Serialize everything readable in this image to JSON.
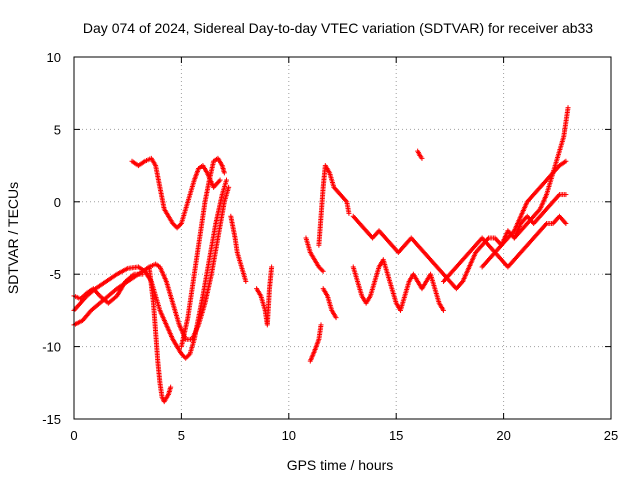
{
  "chart_data": {
    "type": "scatter",
    "title": "Day 074 of 2024, Sidereal Day-to-day VTEC variation (SDTVAR) for receiver ab33",
    "xlabel": "GPS time / hours",
    "ylabel": "SDTVAR / TECUs",
    "xlim": [
      0,
      25
    ],
    "ylim": [
      -15,
      10
    ],
    "xticks": [
      0,
      5,
      10,
      15,
      20,
      25
    ],
    "yticks": [
      -15,
      -10,
      -5,
      0,
      5,
      10
    ],
    "grid": true,
    "marker": "plus",
    "color": "#ff0000",
    "series": [
      {
        "segments": [
          [
            [
              0.0,
              -7.5
            ],
            [
              0.3,
              -7.0
            ],
            [
              0.6,
              -6.5
            ],
            [
              1.0,
              -6.0
            ],
            [
              1.5,
              -5.5
            ],
            [
              2.0,
              -5.0
            ],
            [
              2.5,
              -4.6
            ],
            [
              3.0,
              -4.5
            ],
            [
              3.3,
              -4.8
            ],
            [
              3.6,
              -5.5
            ],
            [
              3.8,
              -6.5
            ],
            [
              4.0,
              -7.5
            ],
            [
              4.3,
              -8.5
            ],
            [
              4.6,
              -9.5
            ],
            [
              5.0,
              -10.5
            ],
            [
              5.2,
              -10.8
            ],
            [
              5.4,
              -10.5
            ],
            [
              5.6,
              -9.5
            ],
            [
              5.8,
              -8.0
            ],
            [
              6.0,
              -6.5
            ],
            [
              6.3,
              -4.0
            ],
            [
              6.6,
              -1.5
            ],
            [
              6.9,
              0.5
            ],
            [
              7.1,
              1.5
            ]
          ],
          [
            [
              0.0,
              -8.5
            ],
            [
              0.4,
              -8.2
            ],
            [
              0.8,
              -7.5
            ],
            [
              1.2,
              -7.0
            ],
            [
              1.6,
              -6.5
            ],
            [
              2.0,
              -6.0
            ],
            [
              2.5,
              -5.5
            ],
            [
              3.0,
              -5.0
            ],
            [
              3.5,
              -4.5
            ],
            [
              3.8,
              -4.3
            ],
            [
              4.0,
              -4.5
            ],
            [
              4.3,
              -5.5
            ],
            [
              4.6,
              -7.0
            ],
            [
              4.9,
              -8.5
            ],
            [
              5.2,
              -9.5
            ],
            [
              5.5,
              -9.5
            ],
            [
              5.8,
              -8.5
            ],
            [
              6.1,
              -7.0
            ],
            [
              6.4,
              -5.0
            ],
            [
              6.7,
              -2.5
            ],
            [
              7.0,
              0.0
            ],
            [
              7.2,
              1.0
            ]
          ],
          [
            [
              0.0,
              -6.5
            ],
            [
              0.3,
              -6.7
            ],
            [
              0.6,
              -6.3
            ],
            [
              0.9,
              -6.0
            ],
            [
              1.2,
              -6.5
            ],
            [
              1.6,
              -7.0
            ],
            [
              2.0,
              -6.5
            ],
            [
              2.4,
              -5.5
            ],
            [
              2.8,
              -5.0
            ],
            [
              3.2,
              -5.0
            ]
          ],
          [
            [
              2.7,
              2.8
            ],
            [
              3.0,
              2.5
            ],
            [
              3.3,
              2.8
            ],
            [
              3.6,
              3.0
            ],
            [
              3.8,
              2.5
            ],
            [
              4.0,
              1.0
            ],
            [
              4.2,
              -0.5
            ],
            [
              4.4,
              -1.0
            ],
            [
              4.6,
              -1.5
            ],
            [
              4.8,
              -1.8
            ],
            [
              5.0,
              -1.5
            ],
            [
              5.2,
              -0.5
            ],
            [
              5.4,
              0.5
            ],
            [
              5.6,
              1.5
            ],
            [
              5.8,
              2.3
            ],
            [
              6.0,
              2.5
            ],
            [
              6.2,
              2.0
            ],
            [
              6.5,
              1.0
            ],
            [
              6.8,
              1.5
            ]
          ],
          [
            [
              3.5,
              -4.5
            ],
            [
              3.7,
              -7.0
            ],
            [
              3.8,
              -9.0
            ],
            [
              3.9,
              -11.0
            ],
            [
              4.0,
              -12.5
            ],
            [
              4.1,
              -13.5
            ],
            [
              4.2,
              -13.8
            ],
            [
              4.4,
              -13.3
            ],
            [
              4.5,
              -12.8
            ]
          ],
          [
            [
              5.0,
              -10.0
            ],
            [
              5.3,
              -8.0
            ],
            [
              5.6,
              -5.0
            ],
            [
              5.9,
              -2.0
            ],
            [
              6.1,
              0.0
            ],
            [
              6.3,
              1.5
            ],
            [
              6.5,
              2.8
            ],
            [
              6.7,
              3.0
            ],
            [
              6.9,
              2.5
            ],
            [
              7.0,
              2.0
            ]
          ],
          [
            [
              7.3,
              -1.0
            ],
            [
              7.5,
              -2.5
            ],
            [
              7.6,
              -3.5
            ],
            [
              7.8,
              -4.5
            ],
            [
              8.0,
              -5.5
            ]
          ],
          [
            [
              8.5,
              -6.0
            ],
            [
              8.7,
              -6.5
            ],
            [
              8.9,
              -7.5
            ],
            [
              9.0,
              -8.5
            ],
            [
              9.1,
              -6.0
            ],
            [
              9.2,
              -4.5
            ]
          ],
          [
            [
              10.8,
              -2.5
            ],
            [
              11.0,
              -3.5
            ],
            [
              11.2,
              -4.0
            ],
            [
              11.4,
              -4.5
            ],
            [
              11.6,
              -4.8
            ]
          ],
          [
            [
              11.0,
              -11.0
            ],
            [
              11.2,
              -10.3
            ],
            [
              11.4,
              -9.5
            ],
            [
              11.5,
              -8.5
            ]
          ],
          [
            [
              11.6,
              -6.0
            ],
            [
              11.8,
              -6.5
            ],
            [
              12.0,
              -7.5
            ],
            [
              12.2,
              -8.0
            ]
          ],
          [
            [
              11.4,
              -3.0
            ],
            [
              11.5,
              -1.0
            ],
            [
              11.6,
              1.0
            ],
            [
              11.7,
              2.5
            ],
            [
              11.9,
              2.0
            ],
            [
              12.1,
              1.0
            ],
            [
              12.4,
              0.5
            ],
            [
              12.7,
              0.0
            ],
            [
              12.8,
              -0.8
            ]
          ],
          [
            [
              13.0,
              -4.5
            ],
            [
              13.2,
              -5.5
            ],
            [
              13.4,
              -6.5
            ],
            [
              13.6,
              -7.0
            ],
            [
              13.8,
              -6.5
            ],
            [
              14.0,
              -5.5
            ],
            [
              14.2,
              -4.5
            ],
            [
              14.4,
              -4.0
            ],
            [
              14.6,
              -5.0
            ],
            [
              14.8,
              -6.0
            ],
            [
              15.0,
              -7.0
            ],
            [
              15.2,
              -7.5
            ],
            [
              15.4,
              -6.5
            ],
            [
              15.6,
              -5.5
            ],
            [
              15.8,
              -5.0
            ],
            [
              16.0,
              -5.5
            ],
            [
              16.2,
              -6.0
            ],
            [
              16.4,
              -5.5
            ],
            [
              16.6,
              -5.0
            ],
            [
              16.8,
              -6.0
            ],
            [
              17.0,
              -7.0
            ],
            [
              17.2,
              -7.5
            ]
          ],
          [
            [
              13.0,
              -1.0
            ],
            [
              13.3,
              -1.5
            ],
            [
              13.6,
              -2.0
            ],
            [
              13.9,
              -2.5
            ],
            [
              14.2,
              -2.0
            ],
            [
              14.5,
              -2.5
            ],
            [
              14.8,
              -3.0
            ],
            [
              15.1,
              -3.5
            ],
            [
              15.4,
              -3.0
            ],
            [
              15.7,
              -2.5
            ],
            [
              16.0,
              -3.0
            ],
            [
              16.3,
              -3.5
            ],
            [
              16.6,
              -4.0
            ],
            [
              16.9,
              -4.5
            ],
            [
              17.2,
              -5.0
            ],
            [
              17.5,
              -5.5
            ],
            [
              17.8,
              -6.0
            ],
            [
              18.1,
              -5.5
            ],
            [
              18.4,
              -4.5
            ],
            [
              18.7,
              -3.5
            ],
            [
              19.0,
              -3.0
            ],
            [
              19.3,
              -2.5
            ],
            [
              19.6,
              -2.5
            ],
            [
              19.9,
              -3.0
            ],
            [
              20.2,
              -2.0
            ],
            [
              20.5,
              -2.5
            ],
            [
              20.8,
              -1.5
            ],
            [
              21.1,
              -1.0
            ],
            [
              21.4,
              -1.5
            ],
            [
              21.7,
              -1.0
            ],
            [
              22.0,
              -0.5
            ],
            [
              22.3,
              0.0
            ],
            [
              22.6,
              0.5
            ],
            [
              22.9,
              0.5
            ]
          ],
          [
            [
              16.0,
              3.5
            ],
            [
              16.1,
              3.2
            ],
            [
              16.2,
              3.0
            ]
          ],
          [
            [
              17.2,
              -5.5
            ],
            [
              17.5,
              -5.0
            ],
            [
              17.8,
              -4.5
            ],
            [
              18.1,
              -4.0
            ],
            [
              18.4,
              -3.5
            ],
            [
              18.7,
              -3.0
            ],
            [
              19.0,
              -2.5
            ],
            [
              19.3,
              -3.0
            ],
            [
              19.6,
              -3.5
            ],
            [
              19.9,
              -4.0
            ],
            [
              20.2,
              -4.5
            ],
            [
              20.5,
              -4.0
            ],
            [
              20.8,
              -3.5
            ],
            [
              21.1,
              -3.0
            ],
            [
              21.4,
              -2.5
            ],
            [
              21.7,
              -2.0
            ],
            [
              22.0,
              -1.5
            ],
            [
              22.3,
              -1.5
            ],
            [
              22.6,
              -1.0
            ],
            [
              22.9,
              -1.5
            ]
          ],
          [
            [
              20.5,
              -2.5
            ],
            [
              20.8,
              -2.0
            ],
            [
              21.1,
              -1.5
            ],
            [
              21.4,
              -1.0
            ],
            [
              21.7,
              -0.5
            ],
            [
              22.0,
              0.5
            ],
            [
              22.2,
              1.5
            ],
            [
              22.4,
              2.5
            ],
            [
              22.6,
              3.5
            ],
            [
              22.8,
              4.5
            ],
            [
              22.9,
              5.5
            ],
            [
              23.0,
              6.5
            ]
          ],
          [
            [
              19.0,
              -4.5
            ],
            [
              19.3,
              -4.0
            ],
            [
              19.6,
              -3.5
            ],
            [
              19.9,
              -3.0
            ],
            [
              20.2,
              -2.5
            ],
            [
              20.5,
              -2.0
            ],
            [
              20.8,
              -1.0
            ],
            [
              21.1,
              0.0
            ],
            [
              21.4,
              0.5
            ],
            [
              21.7,
              1.0
            ],
            [
              22.0,
              1.5
            ],
            [
              22.3,
              2.0
            ],
            [
              22.6,
              2.5
            ],
            [
              22.9,
              2.8
            ]
          ]
        ]
      }
    ]
  }
}
